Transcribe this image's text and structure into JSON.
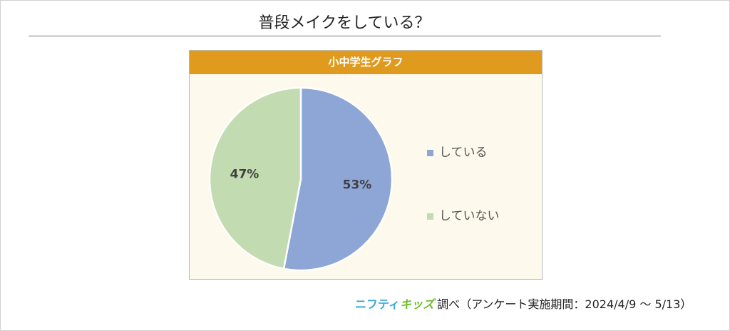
{
  "title": "普段メイクをしている？",
  "chart_data": {
    "type": "pie",
    "title": "小中学生グラフ",
    "categories": [
      "している",
      "していない"
    ],
    "values": [
      53,
      47
    ],
    "labels": [
      "53%",
      "47%"
    ],
    "colors": [
      "#8da6d6",
      "#c3dbb0"
    ],
    "legend": "right",
    "start_angle": "12 o'clock, clockwise"
  },
  "footer": {
    "logo_part1": "ニフティ",
    "logo_part2": "キッズ",
    "text": "調べ（アンケート実施期間：2024/4/9 ～ 5/13）"
  }
}
